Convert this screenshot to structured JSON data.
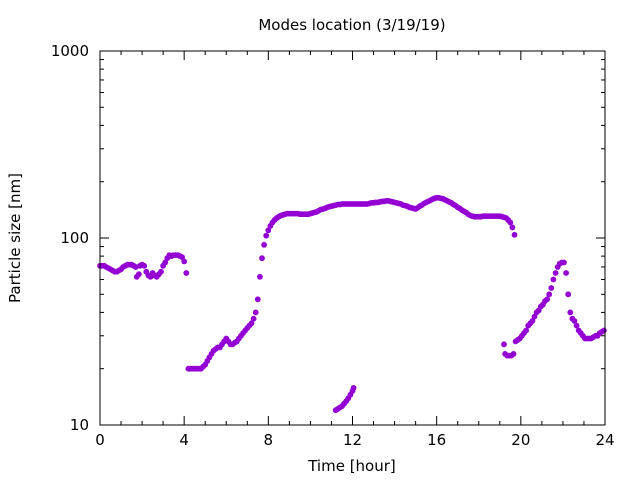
{
  "chart_data": {
    "type": "scatter",
    "title": "Modes location (3/19/19)",
    "xlabel": "Time [hour]",
    "ylabel": "Particle size [nm]",
    "xlim": [
      0,
      24
    ],
    "ylim": [
      10,
      1000
    ],
    "yscale": "log",
    "grid": false,
    "legend": "none",
    "marker_color": "#9400d3",
    "x_ticks": [
      0,
      4,
      8,
      12,
      16,
      20,
      24
    ],
    "x_tick_labels": [
      "0",
      "4",
      "8",
      "12",
      "16",
      "20",
      "24"
    ],
    "y_ticks": [
      10,
      100,
      1000
    ],
    "y_tick_labels": [
      "10",
      "100",
      "1000"
    ],
    "series": [
      {
        "points": [
          [
            0.0,
            71
          ],
          [
            0.1,
            71
          ],
          [
            0.2,
            71
          ],
          [
            0.3,
            70
          ],
          [
            0.4,
            69
          ],
          [
            0.5,
            68
          ],
          [
            0.6,
            67
          ],
          [
            0.7,
            66
          ],
          [
            0.8,
            66
          ],
          [
            0.9,
            67
          ],
          [
            1.0,
            68
          ],
          [
            1.1,
            70
          ],
          [
            1.2,
            71
          ],
          [
            1.3,
            72
          ],
          [
            1.4,
            72
          ],
          [
            1.5,
            72
          ],
          [
            1.6,
            71
          ],
          [
            1.7,
            70
          ],
          [
            1.75,
            62
          ],
          [
            1.85,
            64
          ],
          [
            1.9,
            71
          ],
          [
            2.0,
            72
          ],
          [
            2.1,
            71
          ],
          [
            2.2,
            66
          ],
          [
            2.3,
            63
          ],
          [
            2.4,
            62
          ],
          [
            2.5,
            65
          ],
          [
            2.6,
            63
          ],
          [
            2.7,
            62
          ],
          [
            2.8,
            64
          ],
          [
            2.9,
            66
          ],
          [
            3.0,
            71
          ],
          [
            3.1,
            74
          ],
          [
            3.2,
            78
          ],
          [
            3.3,
            81
          ],
          [
            3.4,
            80
          ],
          [
            3.5,
            81
          ],
          [
            3.6,
            81
          ],
          [
            3.7,
            81
          ],
          [
            3.8,
            80
          ],
          [
            3.9,
            79
          ],
          [
            4.0,
            75
          ],
          [
            4.1,
            65
          ],
          [
            4.2,
            20
          ],
          [
            4.3,
            20
          ],
          [
            4.4,
            20
          ],
          [
            4.5,
            20
          ],
          [
            4.6,
            20
          ],
          [
            4.7,
            20
          ],
          [
            4.8,
            20
          ],
          [
            4.9,
            20.5
          ],
          [
            5.0,
            21
          ],
          [
            5.1,
            22
          ],
          [
            5.2,
            23
          ],
          [
            5.3,
            24
          ],
          [
            5.4,
            25
          ],
          [
            5.5,
            25.5
          ],
          [
            5.6,
            26
          ],
          [
            5.7,
            26
          ],
          [
            5.8,
            27
          ],
          [
            5.9,
            28
          ],
          [
            6.0,
            29
          ],
          [
            6.1,
            28
          ],
          [
            6.2,
            27
          ],
          [
            6.3,
            27
          ],
          [
            6.4,
            27.5
          ],
          [
            6.5,
            28
          ],
          [
            6.6,
            29
          ],
          [
            6.7,
            30
          ],
          [
            6.8,
            31
          ],
          [
            6.9,
            32
          ],
          [
            7.0,
            33
          ],
          [
            7.1,
            34
          ],
          [
            7.2,
            35
          ],
          [
            7.3,
            37
          ],
          [
            7.4,
            40
          ],
          [
            7.5,
            47
          ],
          [
            7.6,
            62
          ],
          [
            7.7,
            78
          ],
          [
            7.8,
            92
          ],
          [
            7.9,
            103
          ],
          [
            8.0,
            110
          ],
          [
            8.1,
            116
          ],
          [
            8.2,
            121
          ],
          [
            8.3,
            125
          ],
          [
            8.4,
            128
          ],
          [
            8.5,
            130
          ],
          [
            8.6,
            132
          ],
          [
            8.7,
            133
          ],
          [
            8.8,
            134
          ],
          [
            8.9,
            135
          ],
          [
            9.0,
            135
          ],
          [
            9.1,
            135
          ],
          [
            9.2,
            135
          ],
          [
            9.3,
            135
          ],
          [
            9.4,
            135
          ],
          [
            9.5,
            134
          ],
          [
            9.6,
            134
          ],
          [
            9.7,
            134
          ],
          [
            9.8,
            134
          ],
          [
            9.9,
            134
          ],
          [
            10.0,
            135
          ],
          [
            10.1,
            136
          ],
          [
            10.2,
            137
          ],
          [
            10.3,
            138
          ],
          [
            10.4,
            140
          ],
          [
            10.5,
            142
          ],
          [
            10.6,
            143
          ],
          [
            10.7,
            144
          ],
          [
            10.8,
            146
          ],
          [
            10.9,
            147
          ],
          [
            11.0,
            148
          ],
          [
            11.1,
            149
          ],
          [
            11.2,
            150
          ],
          [
            11.3,
            151
          ],
          [
            11.4,
            151
          ],
          [
            11.5,
            152
          ],
          [
            11.6,
            152
          ],
          [
            11.7,
            152
          ],
          [
            11.8,
            152
          ],
          [
            11.9,
            152
          ],
          [
            12.0,
            152
          ],
          [
            12.1,
            152
          ],
          [
            12.2,
            152
          ],
          [
            12.3,
            152
          ],
          [
            12.4,
            152
          ],
          [
            12.5,
            152
          ],
          [
            12.6,
            152
          ],
          [
            12.7,
            152
          ],
          [
            12.8,
            153
          ],
          [
            12.9,
            154
          ],
          [
            13.0,
            154
          ],
          [
            13.1,
            155
          ],
          [
            13.2,
            155
          ],
          [
            13.3,
            156
          ],
          [
            13.4,
            157
          ],
          [
            13.5,
            157
          ],
          [
            13.6,
            158
          ],
          [
            13.7,
            158
          ],
          [
            13.8,
            157
          ],
          [
            13.9,
            156
          ],
          [
            14.0,
            155
          ],
          [
            14.1,
            154
          ],
          [
            14.2,
            153
          ],
          [
            14.3,
            152
          ],
          [
            14.4,
            150
          ],
          [
            14.5,
            149
          ],
          [
            14.6,
            148
          ],
          [
            14.7,
            146
          ],
          [
            14.8,
            145
          ],
          [
            14.9,
            144
          ],
          [
            15.0,
            143
          ],
          [
            15.1,
            145
          ],
          [
            15.2,
            148
          ],
          [
            15.3,
            150
          ],
          [
            15.4,
            153
          ],
          [
            15.5,
            155
          ],
          [
            15.6,
            157
          ],
          [
            15.7,
            159
          ],
          [
            15.8,
            161
          ],
          [
            15.9,
            163
          ],
          [
            16.0,
            164
          ],
          [
            16.1,
            164
          ],
          [
            16.2,
            163
          ],
          [
            16.3,
            162
          ],
          [
            16.4,
            160
          ],
          [
            16.5,
            158
          ],
          [
            16.6,
            156
          ],
          [
            16.7,
            154
          ],
          [
            16.8,
            151
          ],
          [
            16.9,
            149
          ],
          [
            17.0,
            146
          ],
          [
            17.1,
            144
          ],
          [
            17.2,
            141
          ],
          [
            17.3,
            139
          ],
          [
            17.4,
            137
          ],
          [
            17.5,
            134
          ],
          [
            17.6,
            132
          ],
          [
            17.7,
            131
          ],
          [
            17.8,
            130
          ],
          [
            17.9,
            130
          ],
          [
            18.0,
            130
          ],
          [
            18.1,
            130
          ],
          [
            18.2,
            131
          ],
          [
            18.3,
            131
          ],
          [
            18.4,
            131
          ],
          [
            18.5,
            131
          ],
          [
            18.6,
            131
          ],
          [
            18.7,
            131
          ],
          [
            18.8,
            131
          ],
          [
            18.9,
            131
          ],
          [
            19.0,
            131
          ],
          [
            19.1,
            130
          ],
          [
            19.2,
            129
          ],
          [
            19.3,
            128
          ],
          [
            19.4,
            125
          ],
          [
            19.5,
            121
          ],
          [
            19.6,
            114
          ],
          [
            19.7,
            104
          ],
          [
            19.2,
            27
          ],
          [
            19.25,
            24
          ],
          [
            19.35,
            23.5
          ],
          [
            19.45,
            23.5
          ],
          [
            19.55,
            23.5
          ],
          [
            19.65,
            24
          ],
          [
            19.75,
            28
          ],
          [
            19.85,
            28.5
          ],
          [
            19.95,
            29
          ],
          [
            20.05,
            30
          ],
          [
            20.15,
            31
          ],
          [
            20.25,
            32
          ],
          [
            20.35,
            34
          ],
          [
            20.45,
            35
          ],
          [
            20.55,
            36
          ],
          [
            20.65,
            38
          ],
          [
            20.75,
            40
          ],
          [
            20.85,
            41
          ],
          [
            20.95,
            43
          ],
          [
            21.05,
            44
          ],
          [
            21.15,
            46
          ],
          [
            21.25,
            47
          ],
          [
            21.35,
            50
          ],
          [
            21.45,
            54
          ],
          [
            21.55,
            60
          ],
          [
            21.65,
            65
          ],
          [
            21.75,
            70
          ],
          [
            21.85,
            73
          ],
          [
            21.95,
            74
          ],
          [
            22.05,
            74
          ],
          [
            22.15,
            65
          ],
          [
            22.25,
            50
          ],
          [
            22.35,
            40
          ],
          [
            22.45,
            37
          ],
          [
            22.55,
            36
          ],
          [
            22.65,
            34
          ],
          [
            22.75,
            32
          ],
          [
            22.85,
            31
          ],
          [
            22.95,
            30
          ],
          [
            23.05,
            29
          ],
          [
            23.15,
            29
          ],
          [
            23.25,
            29
          ],
          [
            23.35,
            29
          ],
          [
            23.45,
            29.5
          ],
          [
            23.55,
            30
          ],
          [
            23.65,
            30
          ],
          [
            23.75,
            31
          ],
          [
            23.85,
            31.5
          ],
          [
            23.95,
            32
          ],
          [
            11.2,
            12
          ],
          [
            11.3,
            12.2
          ],
          [
            11.4,
            12.4
          ],
          [
            11.5,
            12.6
          ],
          [
            11.6,
            13
          ],
          [
            11.7,
            13.4
          ],
          [
            11.8,
            13.9
          ],
          [
            11.9,
            14.5
          ],
          [
            12.0,
            15.2
          ],
          [
            12.05,
            15.8
          ]
        ]
      }
    ]
  }
}
